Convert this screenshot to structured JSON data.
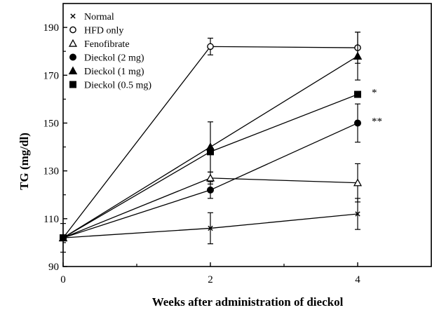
{
  "chart_data": {
    "type": "line",
    "title": "",
    "xlabel": "Weeks after administration of dieckol",
    "ylabel": "TG (mg/dl)",
    "xlim": [
      0,
      5
    ],
    "ylim": [
      90,
      200
    ],
    "xticks": [
      0,
      2,
      4
    ],
    "xtick_labels": [
      "0",
      "2",
      "4"
    ],
    "yticks": [
      90,
      110,
      130,
      150,
      170,
      190
    ],
    "ytick_labels": [
      "90",
      "110",
      "130",
      "150",
      "170",
      "190"
    ],
    "grid": false,
    "legend_position": "top-left",
    "x": [
      0,
      2,
      4
    ],
    "series": [
      {
        "name": "Normal",
        "marker": "x",
        "values": [
          102,
          106,
          112
        ],
        "errors": [
          6,
          6.5,
          6.5
        ]
      },
      {
        "name": "HFD only",
        "marker": "circle-open",
        "values": [
          102,
          182,
          181.5
        ],
        "errors": [
          0,
          3.5,
          6.5
        ]
      },
      {
        "name": "Fenofibrate",
        "marker": "triangle-open",
        "values": [
          102,
          127,
          125
        ],
        "errors": [
          0,
          2.5,
          8
        ]
      },
      {
        "name": "Dieckol (2 mg)",
        "marker": "circle-filled",
        "values": [
          102,
          122,
          150
        ],
        "errors": [
          0,
          3.5,
          8
        ]
      },
      {
        "name": "Dieckol (1 mg)",
        "marker": "triangle-filled",
        "values": [
          102,
          140,
          178
        ],
        "errors": [
          0,
          10.5,
          10
        ]
      },
      {
        "name": "Dieckol (0.5 mg)",
        "marker": "square-filled",
        "values": [
          102,
          138,
          162
        ],
        "errors": [
          0,
          0,
          0
        ]
      }
    ],
    "annotations": [
      {
        "text": "*",
        "x": 4,
        "series": "Dieckol (0.5 mg)"
      },
      {
        "text": "**",
        "x": 4,
        "series": "Dieckol (2 mg)"
      }
    ]
  }
}
